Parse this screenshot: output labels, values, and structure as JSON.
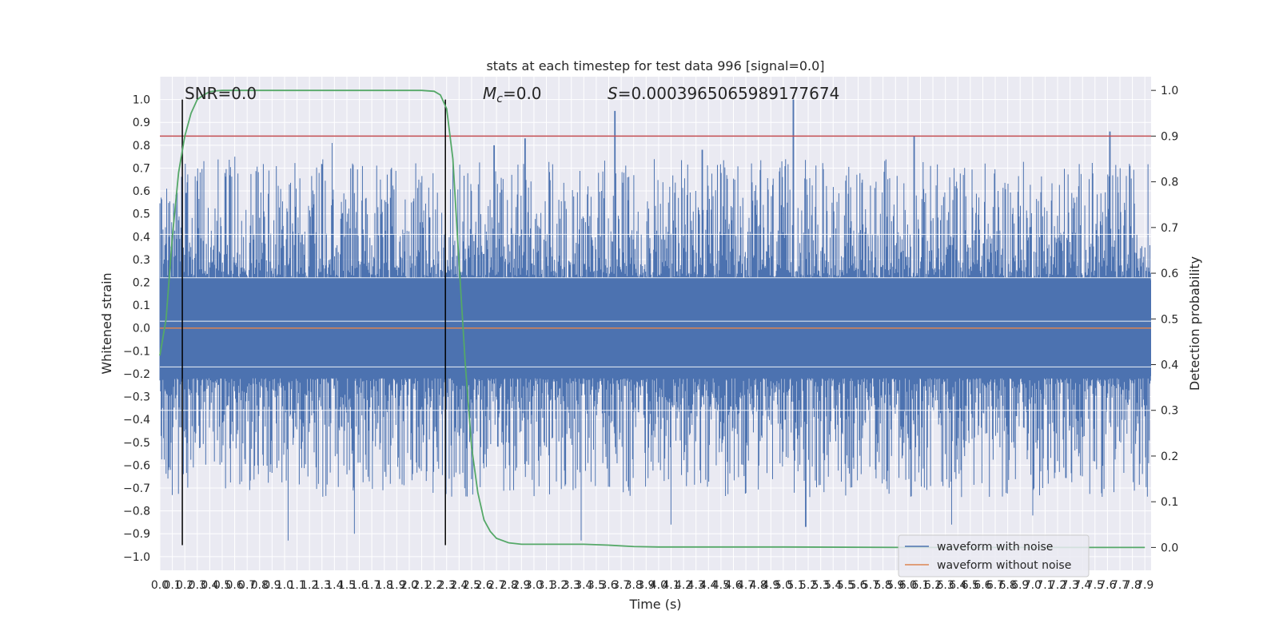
{
  "chart_data": {
    "type": "line",
    "title": "stats at each timestep for test data 996 [signal=0.0]",
    "xlabel": "Time (s)",
    "ylabel": "Whitened strain",
    "ylabel_right": "Detection probability",
    "xlim": [
      0.0,
      7.95
    ],
    "ylim": [
      -1.06,
      1.1
    ],
    "ylim_right": [
      -0.05,
      1.03
    ],
    "x_ticks": [
      "0.0",
      "0.1",
      "0.2",
      "0.3",
      "0.4",
      "0.5",
      "0.6",
      "0.7",
      "0.8",
      "0.9",
      "1.0",
      "1.1",
      "1.2",
      "1.3",
      "1.4",
      "1.5",
      "1.6",
      "1.7",
      "1.8",
      "1.9",
      "2.0",
      "2.1",
      "2.2",
      "2.3",
      "2.4",
      "2.5",
      "2.6",
      "2.7",
      "2.8",
      "2.9",
      "3.0",
      "3.1",
      "3.2",
      "3.3",
      "3.4",
      "3.5",
      "3.6",
      "3.7",
      "3.8",
      "3.9",
      "4.0",
      "4.1",
      "4.2",
      "4.3",
      "4.4",
      "4.5",
      "4.6",
      "4.7",
      "4.8",
      "4.9",
      "5.0",
      "5.1",
      "5.2",
      "5.3",
      "5.4",
      "5.5",
      "5.6",
      "5.7",
      "5.8",
      "5.9",
      "6.0",
      "6.1",
      "6.2",
      "6.3",
      "6.4",
      "6.5",
      "6.6",
      "6.7",
      "6.8",
      "6.9",
      "7.0",
      "7.1",
      "7.2",
      "7.3",
      "7.4",
      "7.5",
      "7.6",
      "7.7",
      "7.8",
      "7.9"
    ],
    "y_ticks_left": [
      "1.0",
      "0.9",
      "0.8",
      "0.7",
      "0.6",
      "0.5",
      "0.4",
      "0.3",
      "0.2",
      "0.1",
      "0.0",
      "−0.1",
      "−0.2",
      "−0.3",
      "−0.4",
      "−0.5",
      "−0.6",
      "−0.7",
      "−0.8",
      "−0.9",
      "−1.0"
    ],
    "y_ticks_right": [
      "1.0",
      "0.9",
      "0.8",
      "0.7",
      "0.6",
      "0.5",
      "0.4",
      "0.3",
      "0.2",
      "0.1",
      "0.0"
    ],
    "annotations": {
      "snr": "SNR=0.0",
      "mc_symbol": "M",
      "mc_sub": "c",
      "mc_value": "=0.0",
      "s_symbol": "S",
      "s_value": "=0.0003965065989177674"
    },
    "vertical_lines_x": [
      0.18,
      2.29
    ],
    "threshold_line_y_right": 0.9,
    "noise_envelope": {
      "upper_typical": 0.5,
      "lower_typical": -0.5,
      "peak": 1.0,
      "trough": -0.93
    },
    "series": [
      {
        "name": "waveform with noise",
        "color": "#4c72b0",
        "description_points": {
          "x": [
            0.0,
            7.95
          ]
        }
      },
      {
        "name": "waveform without noise",
        "color": "#dd8452",
        "x": [
          0.0,
          7.95
        ],
        "y": [
          0.0,
          0.0
        ]
      },
      {
        "name": "",
        "color": "#55a868",
        "axis": "right",
        "x": [
          0.0,
          0.05,
          0.1,
          0.15,
          0.2,
          0.25,
          0.3,
          0.35,
          0.4,
          0.45,
          0.5,
          0.6,
          0.8,
          1.0,
          1.5,
          2.0,
          2.1,
          2.2,
          2.25,
          2.3,
          2.35,
          2.4,
          2.45,
          2.5,
          2.55,
          2.6,
          2.65,
          2.7,
          2.8,
          2.9,
          3.0,
          3.2,
          3.4,
          3.6,
          3.8,
          4.0,
          5.0,
          6.0,
          7.0,
          7.9
        ],
        "y": [
          0.42,
          0.5,
          0.68,
          0.82,
          0.9,
          0.95,
          0.98,
          0.99,
          0.997,
          0.999,
          1.0,
          1.0,
          1.0,
          1.0,
          1.0,
          1.0,
          1.0,
          0.998,
          0.99,
          0.96,
          0.85,
          0.62,
          0.4,
          0.22,
          0.12,
          0.06,
          0.035,
          0.02,
          0.01,
          0.007,
          0.007,
          0.007,
          0.007,
          0.005,
          0.002,
          0.001,
          0.001,
          0.0,
          0.0,
          0.0
        ]
      }
    ],
    "legend": {
      "placement": "lower-right",
      "entries": [
        "waveform with noise",
        "waveform without noise"
      ]
    },
    "grid": true
  }
}
